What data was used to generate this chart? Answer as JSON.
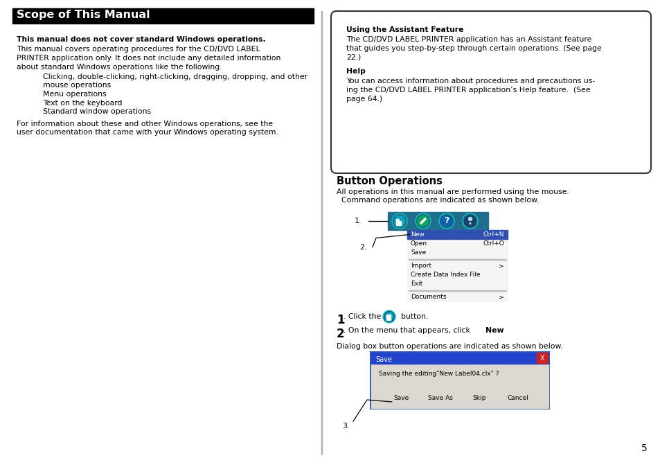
{
  "page_bg": "#ffffff",
  "page_num": "5",
  "left_title": "Scope of This Manual",
  "left_bold_heading": "This manual does not cover standard Windows operations.",
  "left_para1_lines": [
    "This manual covers operating procedures for the CD/DVD LABEL",
    "PRINTER application only. It does not include any detailed information",
    "about standard Windows operations like the following."
  ],
  "left_bullet_lines": [
    "Clicking, double-clicking, right-clicking, dragging, dropping, and other",
    "mouse operations",
    "Menu operations",
    "Text on the keyboard",
    "Standard window operations"
  ],
  "left_bullet_indent": [
    true,
    false,
    true,
    true,
    true
  ],
  "left_para2_lines": [
    "For information about these and other Windows operations, see the",
    "user documentation that came with your Windows operating system."
  ],
  "right_box_title": "Using the Assistant Feature",
  "right_box_para1_lines": [
    "The CD/DVD LABEL PRINTER application has an Assistant feature",
    "that guides you step-by-step through certain operations. (See page",
    "22.)"
  ],
  "right_box_bold2": "Help",
  "right_box_para2_lines": [
    "You can access information about procedures and precautions us-",
    "ing the CD/DVD LABEL PRINTER application’s Help feature.  (See",
    "page 64.)"
  ],
  "right_section_title": "Button Operations",
  "right_para1": "All operations in this manual are performed using the mouse.",
  "right_para2": "  Command operations are indicated as shown below.",
  "dialog_label": "Dialog box button operations are indicated as shown below.",
  "menu_items": [
    {
      "label": "New",
      "shortcut": "Ctrl+N",
      "highlighted": true
    },
    {
      "label": "Open",
      "shortcut": "Ctrl+O",
      "highlighted": false
    },
    {
      "label": "Save",
      "shortcut": "",
      "highlighted": false
    },
    {
      "label": "---"
    },
    {
      "label": "Import",
      "shortcut": ">",
      "highlighted": false
    },
    {
      "label": "Create Data Index File",
      "shortcut": "",
      "highlighted": false
    },
    {
      "label": "Exit",
      "shortcut": "",
      "highlighted": false
    },
    {
      "label": "---"
    },
    {
      "label": "Documents",
      "shortcut": ">",
      "highlighted": false
    }
  ],
  "btn_labels": [
    "Save",
    "Save As",
    "Skip",
    "Cancel"
  ],
  "toolbar_bg": "#1a6b8a",
  "menu_highlight_color": "#3050b0",
  "dialog_title_color": "#2244cc",
  "dialog_close_color": "#cc2222",
  "dialog_body_color": "#dbd8d0",
  "dialog_border_color": "#3355bb"
}
